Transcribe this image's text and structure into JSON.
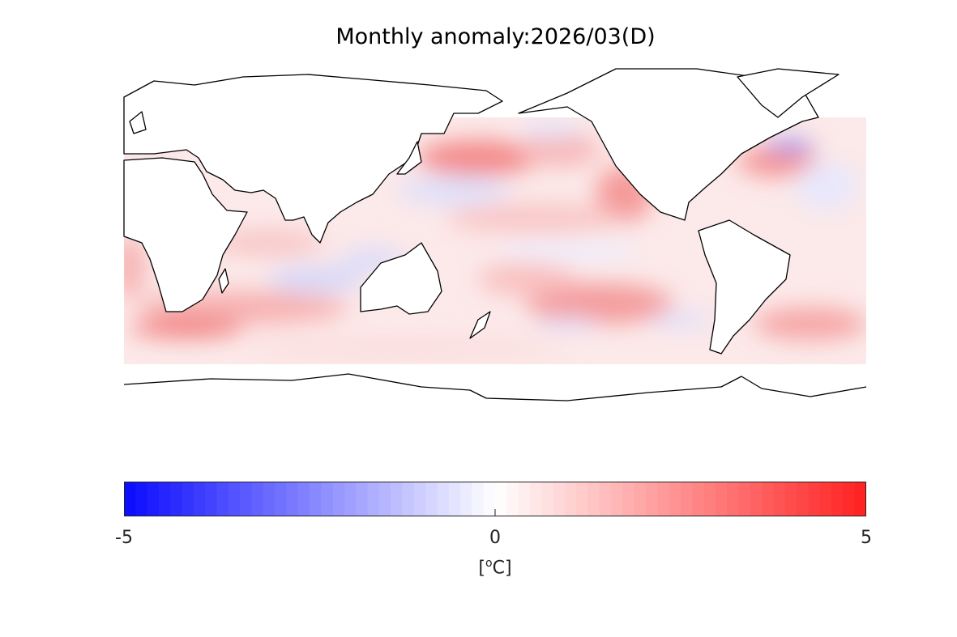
{
  "title": "Monthly anomaly:2026/03(D)",
  "colorbar": {
    "min": -5,
    "max": 5,
    "steps": 64,
    "ticks": [
      "-5",
      "0",
      "5"
    ],
    "unit_open": "[",
    "unit_degree": "o",
    "unit_letter": "C",
    "unit_close": "]",
    "low_color": "#0a0aff",
    "mid_color": "#ffffff",
    "high_color": "#ff2020"
  },
  "map": {
    "projection": "equirectangular",
    "central_longitude": 180,
    "land_color": "#ffffff",
    "coastline_color": "#000000"
  }
}
